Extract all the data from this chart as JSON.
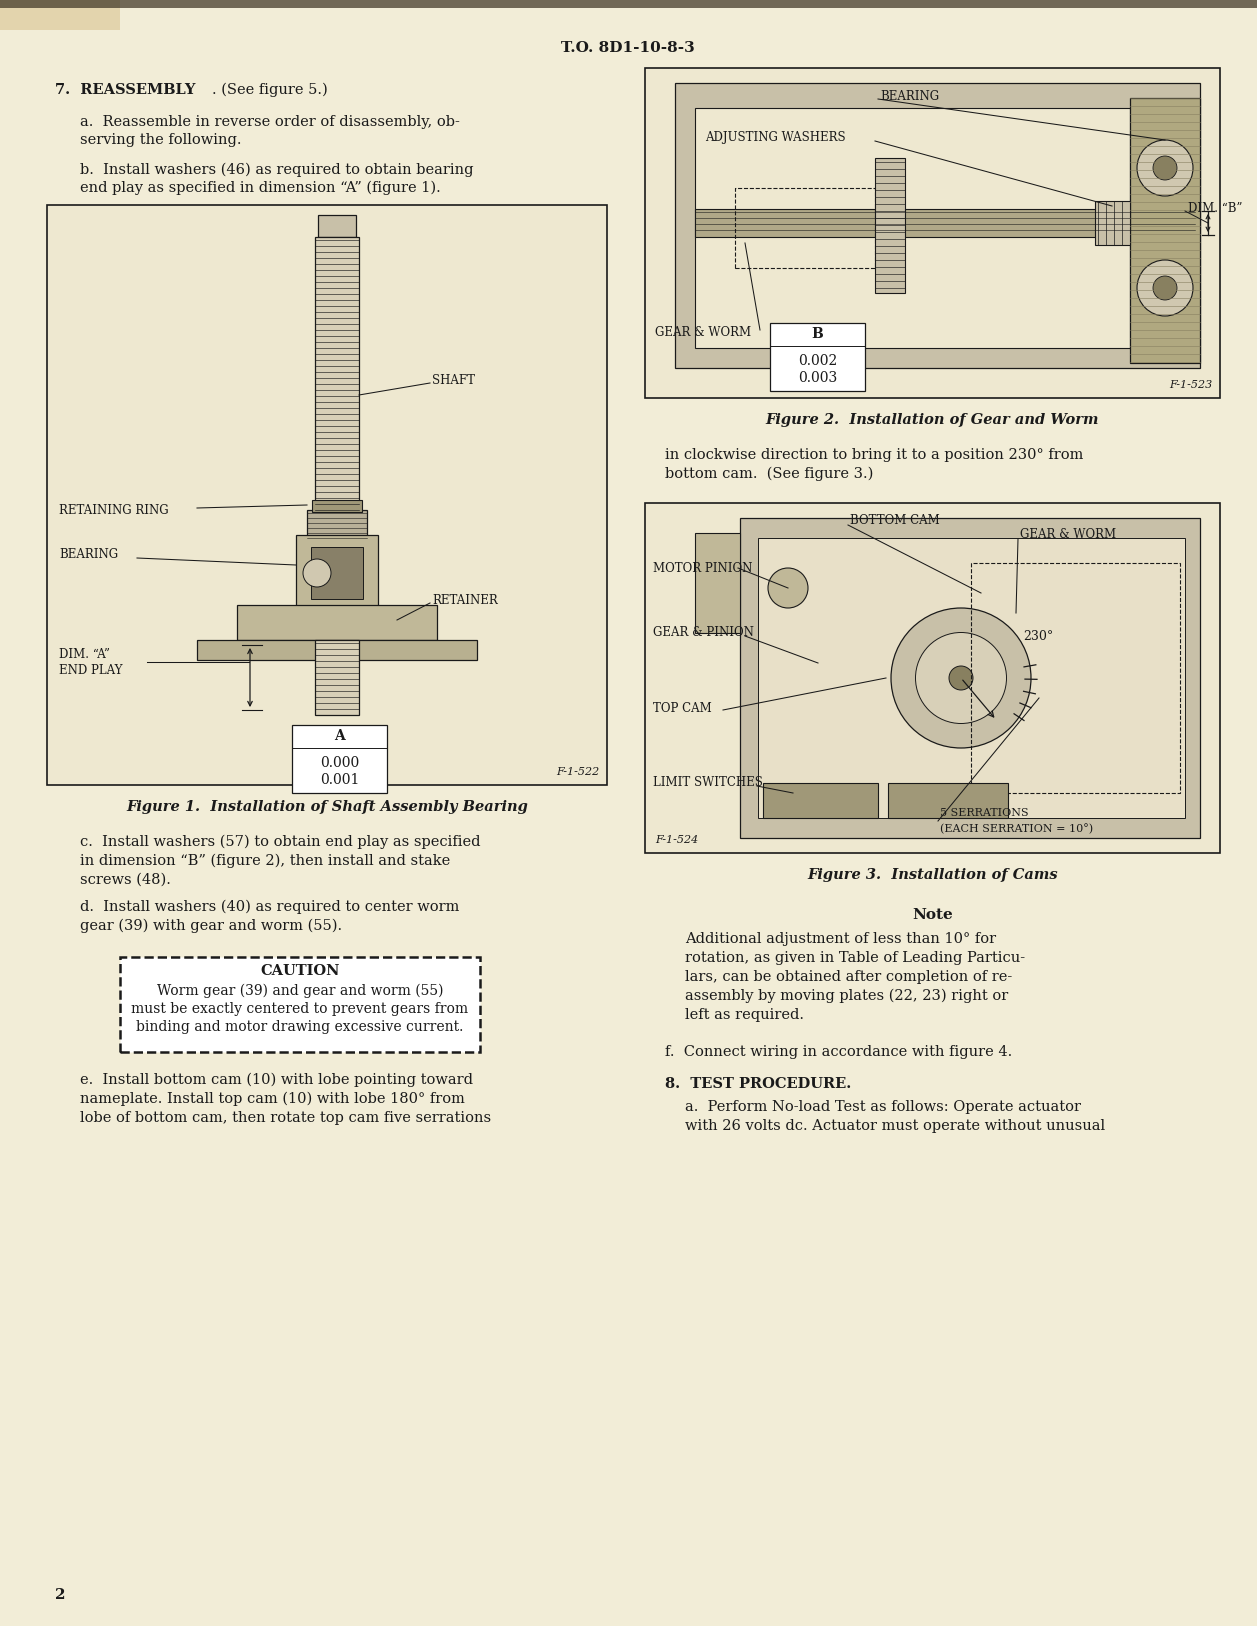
{
  "page_title": "T.O. 8D1-10-8-3",
  "page_number": "2",
  "bg_color": "#F2EDD7",
  "text_color": "#1a1a1a",
  "section7_heading_bold": "7.  REASSEMBLY",
  "section7_heading_normal": ". (See figure 5.)",
  "para_a_line1": "a.  Reassemble in reverse order of disassembly, ob-",
  "para_a_line2": "serving the following.",
  "para_b_line1": "b.  Install washers (46) as required to obtain bearing",
  "para_b_line2": "end play as specified in dimension “A” (figure 1).",
  "fig1_caption": "Figure 1.  Installation of Shaft Assembly Bearing",
  "fig1_table_letter": "A",
  "fig1_table_values": [
    "0.000",
    "0.001"
  ],
  "fig1_id": "F-1-522",
  "para_c_line1": "c.  Install washers (57) to obtain end play as specified",
  "para_c_line2": "in dimension “B” (figure 2), then install and stake",
  "para_c_line3": "screws (48).",
  "para_d_line1": "d.  Install washers (40) as required to center worm",
  "para_d_line2": "gear (39) with gear and worm (55).",
  "caution_heading": "CAUTION",
  "caution_line1": "Worm gear (39) and gear and worm (55)",
  "caution_line2": "must be exactly centered to prevent gears from",
  "caution_line3": "binding and motor drawing excessive current.",
  "para_e_line1": "e.  Install bottom cam (10) with lobe pointing toward",
  "para_e_line2": "nameplate. Install top cam (10) with lobe 180° from",
  "para_e_line3": "lobe of bottom cam, then rotate top cam five serrations",
  "fig2_caption": "Figure 2.  Installation of Gear and Worm",
  "fig2_table_letter": "B",
  "fig2_table_values": [
    "0.002",
    "0.003"
  ],
  "fig2_id": "F-1-523",
  "para_e2_line1": "in clockwise direction to bring it to a position 230° from",
  "para_e2_line2": "bottom cam.  (See figure 3.)",
  "fig3_caption": "Figure 3.  Installation of Cams",
  "fig3_angle": "230°",
  "fig3_id": "F-1-524",
  "note_heading": "Note",
  "note_line1": "Additional adjustment of less than 10° for",
  "note_line2": "rotation, as given in Table of Leading Particu-",
  "note_line3": "lars, can be obtained after completion of re-",
  "note_line4": "assembly by moving plates (22, 23) right or",
  "note_line5": "left as required.",
  "para_f": "f.  Connect wiring in accordance with figure 4.",
  "section8_heading_bold": "8.  TEST PROCEDURE.",
  "para_8a_line1": "a.  Perform No-load Test as follows: Operate actuator",
  "para_8a_line2": "with 26 volts dc. Actuator must operate without unusual"
}
